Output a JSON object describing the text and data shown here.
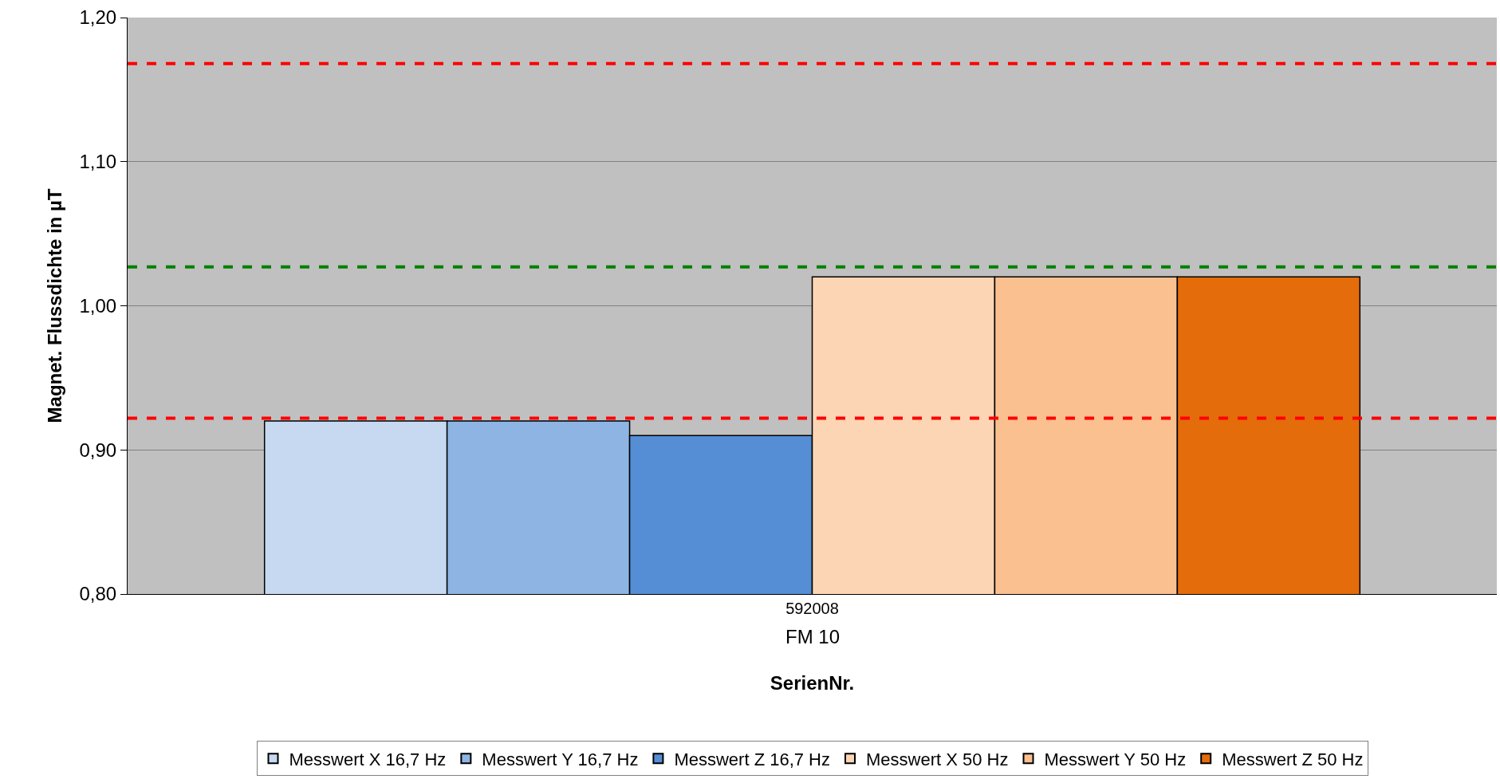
{
  "chart_data": {
    "type": "bar",
    "categories": [
      "592008"
    ],
    "xlabel": "SerienNr.",
    "ylabel": "Magnet. Flussdichte in µT",
    "annotations": [
      "FM 10"
    ],
    "series": [
      {
        "name": "Messwert X 16,7 Hz",
        "color": "#c6d9f1",
        "values": [
          0.92
        ]
      },
      {
        "name": "Messwert Y 16,7 Hz",
        "color": "#8eb4e3",
        "values": [
          0.92
        ]
      },
      {
        "name": "Messwert Z 16,7 Hz",
        "color": "#558ed5",
        "values": [
          0.91
        ]
      },
      {
        "name": "Messwert X 50 Hz",
        "color": "#fcd5b5",
        "values": [
          1.02
        ]
      },
      {
        "name": "Messwert Y 50 Hz",
        "color": "#fac090",
        "values": [
          1.02
        ]
      },
      {
        "name": "Messwert Z 50 Hz",
        "color": "#e46c0a",
        "values": [
          1.02
        ]
      }
    ],
    "ylim": [
      0.8,
      1.2
    ],
    "yticks": [
      {
        "value": 0.8,
        "label": "0,80"
      },
      {
        "value": 0.9,
        "label": "0,90"
      },
      {
        "value": 1.0,
        "label": "1,00"
      },
      {
        "value": 1.1,
        "label": "1,10"
      },
      {
        "value": 1.2,
        "label": "1,20"
      }
    ],
    "ref_lines": [
      {
        "axis": "y",
        "value": 1.168,
        "color": "#ff0000",
        "line_style": "dashed"
      },
      {
        "axis": "y",
        "value": 1.027,
        "color": "#008000",
        "line_style": "dashed"
      },
      {
        "axis": "y",
        "value": 0.922,
        "color": "#ff0000",
        "line_style": "dashed"
      }
    ],
    "grid": "y",
    "legend": "bottom"
  }
}
